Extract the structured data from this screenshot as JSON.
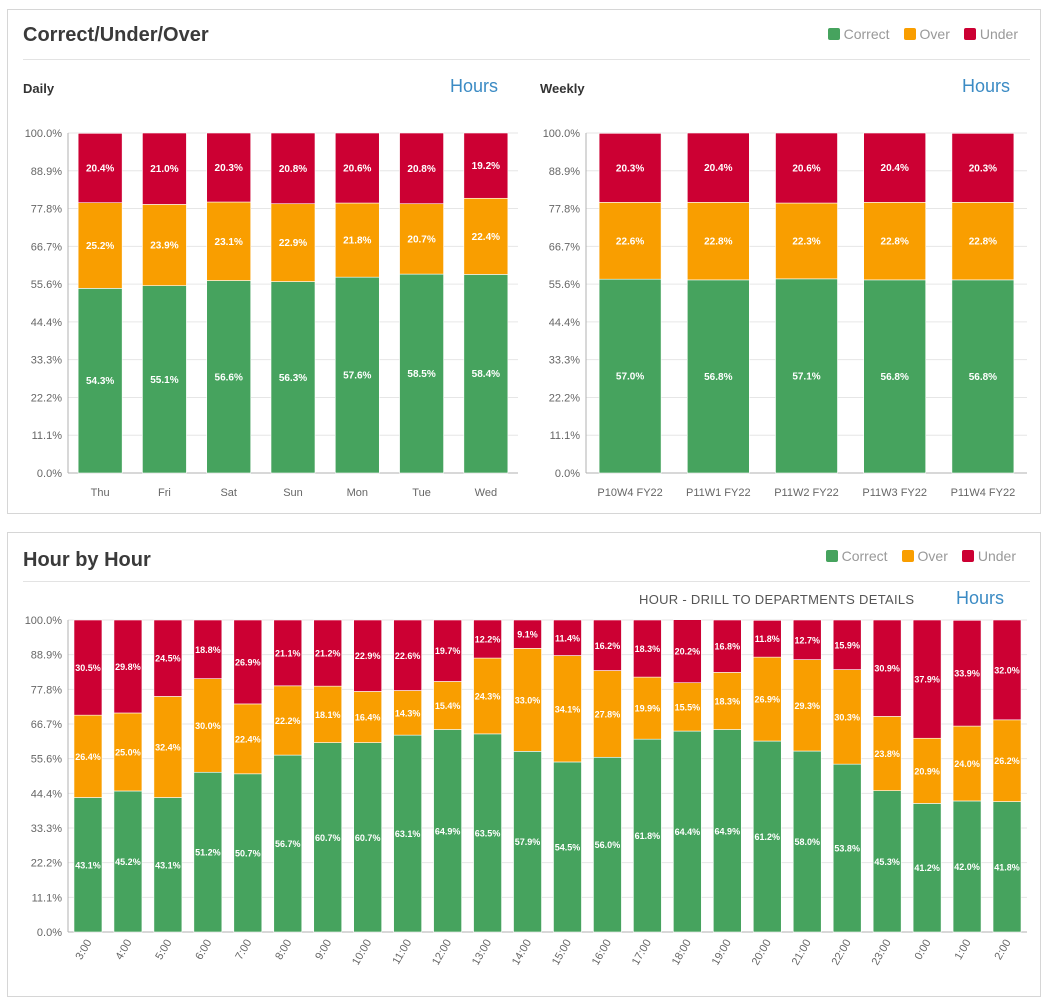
{
  "colors": {
    "correct": "#46a35e",
    "over": "#f99e00",
    "under": "#cc0033",
    "axis": "#b0b0b0",
    "grid": "#e6e6e6",
    "unit": "#3b8bc4"
  },
  "top_panel": {
    "title": "Correct/Under/Over",
    "legend": [
      "Correct",
      "Over",
      "Under"
    ],
    "daily": {
      "label": "Daily",
      "unit": "Hours"
    },
    "weekly": {
      "label": "Weekly",
      "unit": "Hours"
    }
  },
  "bottom_panel": {
    "title": "Hour by Hour",
    "legend": [
      "Correct",
      "Over",
      "Under"
    ],
    "drill_label": "HOUR - DRILL TO DEPARTMENTS DETAILS",
    "unit": "Hours"
  },
  "chart_data": [
    {
      "id": "daily",
      "type": "bar",
      "stacked": true,
      "categories": [
        "Thu",
        "Fri",
        "Sat",
        "Sun",
        "Mon",
        "Tue",
        "Wed"
      ],
      "yticks": [
        "100.0%",
        "88.9%",
        "77.8%",
        "66.7%",
        "55.6%",
        "44.4%",
        "33.3%",
        "22.2%",
        "11.1%",
        "0.0%"
      ],
      "ylim": [
        0,
        100
      ],
      "series": [
        {
          "name": "Correct",
          "values": [
            54.3,
            55.1,
            56.6,
            56.3,
            57.6,
            58.5,
            58.4
          ],
          "labels": [
            "54.3%",
            "55.1%",
            "56.6%",
            "56.3%",
            "57.6%",
            "58.5%",
            "58.4%"
          ]
        },
        {
          "name": "Over",
          "values": [
            25.2,
            23.9,
            23.1,
            22.9,
            21.8,
            20.7,
            22.4
          ],
          "labels": [
            "25.2%",
            "23.9%",
            "23.1%",
            "22.9%",
            "21.8%",
            "20.7%",
            "22.4%"
          ]
        },
        {
          "name": "Under",
          "values": [
            20.4,
            21.0,
            20.3,
            20.8,
            20.6,
            20.8,
            19.2
          ],
          "labels": [
            "20.4%",
            "21.0%",
            "20.3%",
            "20.8%",
            "20.6%",
            "20.8%",
            "19.2%"
          ]
        }
      ]
    },
    {
      "id": "weekly",
      "type": "bar",
      "stacked": true,
      "categories": [
        "P10W4 FY22",
        "P11W1 FY22",
        "P11W2 FY22",
        "P11W3 FY22",
        "P11W4 FY22"
      ],
      "yticks": [
        "100.0%",
        "88.9%",
        "77.8%",
        "66.7%",
        "55.6%",
        "44.4%",
        "33.3%",
        "22.2%",
        "11.1%",
        "0.0%"
      ],
      "ylim": [
        0,
        100
      ],
      "series": [
        {
          "name": "Correct",
          "values": [
            57.0,
            56.8,
            57.1,
            56.8,
            56.8
          ],
          "labels": [
            "57.0%",
            "56.8%",
            "57.1%",
            "56.8%",
            "56.8%"
          ]
        },
        {
          "name": "Over",
          "values": [
            22.6,
            22.8,
            22.3,
            22.8,
            22.8
          ],
          "labels": [
            "22.6%",
            "22.8%",
            "22.3%",
            "22.8%",
            "22.8%"
          ]
        },
        {
          "name": "Under",
          "values": [
            20.3,
            20.4,
            20.6,
            20.4,
            20.3
          ],
          "labels": [
            "20.3%",
            "20.4%",
            "20.6%",
            "20.4%",
            "20.3%"
          ]
        }
      ]
    },
    {
      "id": "hourly",
      "type": "bar",
      "stacked": true,
      "categories": [
        "3:00",
        "4:00",
        "5:00",
        "6:00",
        "7:00",
        "8:00",
        "9:00",
        "10:00",
        "11:00",
        "12:00",
        "13:00",
        "14:00",
        "15:00",
        "16:00",
        "17:00",
        "18:00",
        "19:00",
        "20:00",
        "21:00",
        "22:00",
        "23:00",
        "0:00",
        "1:00",
        "2:00"
      ],
      "yticks": [
        "100.0%",
        "88.9%",
        "77.8%",
        "66.7%",
        "55.6%",
        "44.4%",
        "33.3%",
        "22.2%",
        "11.1%",
        "0.0%"
      ],
      "ylim": [
        0,
        100
      ],
      "series": [
        {
          "name": "Correct",
          "values": [
            43.1,
            45.2,
            43.1,
            51.2,
            50.7,
            56.7,
            60.7,
            60.7,
            63.1,
            64.9,
            63.5,
            57.9,
            54.5,
            56.0,
            61.8,
            64.4,
            64.9,
            61.2,
            58.0,
            53.8,
            45.3,
            41.2,
            42.0,
            41.8
          ],
          "labels": [
            "43.1%",
            "45.2%",
            "43.1%",
            "51.2%",
            "50.7%",
            "56.7%",
            "60.7%",
            "60.7%",
            "63.1%",
            "64.9%",
            "63.5%",
            "57.9%",
            "54.5%",
            "56.0%",
            "61.8%",
            "64.4%",
            "64.9%",
            "61.2%",
            "58.0%",
            "53.8%",
            "45.3%",
            "41.2%",
            "42.0%",
            "41.8%"
          ]
        },
        {
          "name": "Over",
          "values": [
            26.4,
            25.0,
            32.4,
            30.0,
            22.4,
            22.2,
            18.1,
            16.4,
            14.3,
            15.4,
            24.3,
            33.0,
            34.1,
            27.8,
            19.9,
            15.5,
            18.3,
            26.9,
            29.3,
            30.3,
            23.8,
            20.9,
            24.0,
            26.2
          ],
          "labels": [
            "26.4%",
            "25.0%",
            "32.4%",
            "30.0%",
            "22.4%",
            "22.2%",
            "18.1%",
            "16.4%",
            "14.3%",
            "15.4%",
            "24.3%",
            "33.0%",
            "34.1%",
            "27.8%",
            "19.9%",
            "15.5%",
            "18.3%",
            "26.9%",
            "29.3%",
            "30.3%",
            "23.8%",
            "20.9%",
            "24.0%",
            "26.2%"
          ]
        },
        {
          "name": "Under",
          "values": [
            30.5,
            29.8,
            24.5,
            18.8,
            26.9,
            21.1,
            21.2,
            22.9,
            22.6,
            19.7,
            12.2,
            9.1,
            11.4,
            16.2,
            18.3,
            20.2,
            16.8,
            11.8,
            12.7,
            15.9,
            30.9,
            37.9,
            33.9,
            32.0
          ],
          "labels": [
            "30.5%",
            "29.8%",
            "24.5%",
            "18.8%",
            "26.9%",
            "21.1%",
            "21.2%",
            "22.9%",
            "22.6%",
            "19.7%",
            "12.2%",
            "9.1%",
            "11.4%",
            "16.2%",
            "18.3%",
            "20.2%",
            "16.8%",
            "11.8%",
            "12.7%",
            "15.9%",
            "30.9%",
            "37.9%",
            "33.9%",
            "32.0%"
          ]
        }
      ]
    }
  ]
}
